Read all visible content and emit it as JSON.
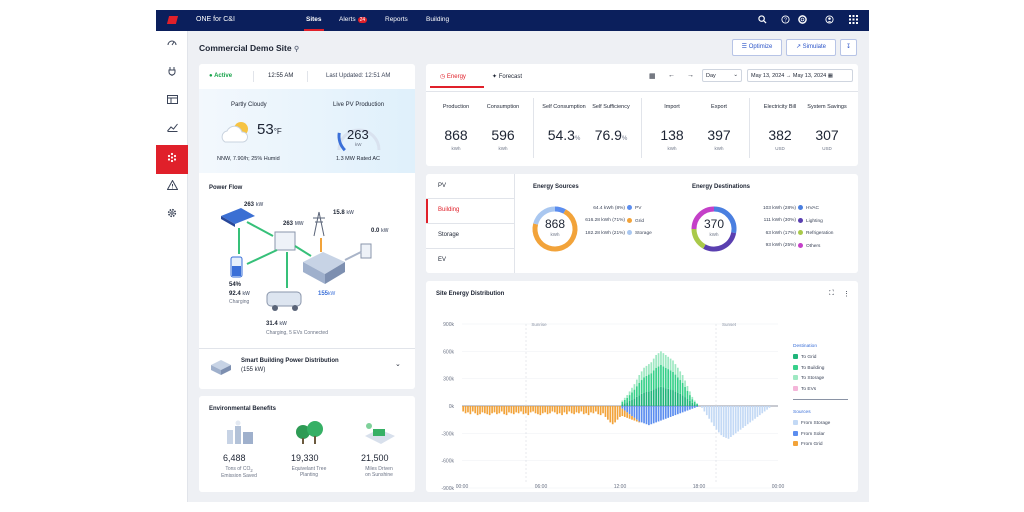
{
  "nav": {
    "app_title": "ONE for C&I",
    "items": [
      "Sites",
      "Alerts",
      "Reports",
      "Building"
    ],
    "alerts_count": "24"
  },
  "page": {
    "title": "Commercial Demo Site",
    "optimize": "Optimize",
    "simulate": "Simulate"
  },
  "status": {
    "state": "Active",
    "time": "12:55 AM",
    "updated_label": "Last Updated:",
    "updated_time": "12:51 AM"
  },
  "weather": {
    "label": "Partly Cloudy",
    "temp": "53",
    "unit": "°F",
    "detail": "NNW, 7.90/h; 25% Humid",
    "pv_label": "Live PV Production",
    "pv_value": "263",
    "pv_unit": "kW",
    "pv_rated": "1.3 MW Rated AC",
    "pv_fraction": 0.2
  },
  "flow": {
    "title": "Power Flow",
    "pv": "263",
    "pv_unit": "kW",
    "grid_in": "263",
    "grid_in_unit": "MW",
    "grid": "15.8",
    "grid_unit": "kW",
    "ev_charger": "0.0",
    "ev_charger_unit": "kW",
    "battery_pct": "54%",
    "battery_kw": "92.4",
    "battery_unit": "kW",
    "battery_state": "Charging",
    "building": "155",
    "building_unit": "kW",
    "ev": "31.4",
    "ev_unit": "kW",
    "ev_detail": "Charging, 5 EVs Connected"
  },
  "smart": {
    "title": "Smart Building Power Distribution",
    "sub": "(155 kW)"
  },
  "env": {
    "title": "Environmental Benefits",
    "items": [
      {
        "value": "6,488",
        "l1": "Tons of CO",
        "l1b": "2",
        "l2": "Emission Saved"
      },
      {
        "value": "19,330",
        "l1": "Equivelant Tree",
        "l2": "Planting"
      },
      {
        "value": "21,500",
        "l1": "Miles Driven",
        "l2": "on Sunshine"
      }
    ]
  },
  "energy_tabs": {
    "energy": "Energy",
    "forecast": "Forecast",
    "period": "Day",
    "date_from": "May 13, 2024",
    "date_to": "May 13, 2024"
  },
  "kpis": [
    {
      "label": "Production",
      "value": "868",
      "unit": "kWh"
    },
    {
      "label": "Consumption",
      "value": "596",
      "unit": "kWh"
    },
    {
      "label": "Self Consumption",
      "value": "54.3",
      "unit": "%"
    },
    {
      "label": "Self Sufficiency",
      "value": "76.9",
      "unit": "%"
    },
    {
      "label": "Import",
      "value": "138",
      "unit": "kWh"
    },
    {
      "label": "Export",
      "value": "397",
      "unit": "kWh"
    },
    {
      "label": "Electricity Bill",
      "value": "382",
      "unit": "USD"
    },
    {
      "label": "System Savings",
      "value": "307",
      "unit": "USD"
    }
  ],
  "side_tabs": [
    "PV",
    "Building",
    "Storage",
    "EV"
  ],
  "sources": {
    "title": "Energy Sources",
    "total": "868",
    "unit": "kWh",
    "items": [
      {
        "text": "64.4 kWh (8%)",
        "name": "PV",
        "color": "#5b8def",
        "frac": 0.08
      },
      {
        "text": "616.28 kWh (71%)",
        "name": "Grid",
        "color": "#f2a33a",
        "frac": 0.71
      },
      {
        "text": "182.28 kWh (21%)",
        "name": "Storage",
        "color": "#a9c7f0",
        "frac": 0.21
      }
    ]
  },
  "dest": {
    "title": "Energy Destinations",
    "total": "370",
    "unit": "kWh",
    "items": [
      {
        "text": "103 kWh (28%)",
        "name": "HVAC",
        "color": "#4a7fe0",
        "frac": 0.28
      },
      {
        "text": "111 kWh (30%)",
        "name": "Lighting",
        "color": "#5a3fb0",
        "frac": 0.3
      },
      {
        "text": "63 kWh (17%)",
        "name": "Refrigeration",
        "color": "#a9c94a",
        "frac": 0.17
      },
      {
        "text": "93 kWh (25%)",
        "name": "Others",
        "color": "#c440c8",
        "frac": 0.25
      }
    ]
  },
  "chart_data": {
    "type": "bar",
    "title": "Site Energy Distribution",
    "yticks": [
      "900k",
      "600k",
      "300k",
      "0k",
      "-300k",
      "-600k",
      "-900k"
    ],
    "xticks": [
      "00:00",
      "06:00",
      "12:00",
      "18:00",
      "00:00"
    ],
    "ylim": [
      -900000,
      900000
    ],
    "annotations": [
      "Sunrise",
      "Sunset"
    ],
    "legend": {
      "dest_title": "Destination",
      "dest": [
        {
          "name": "To Grid",
          "color": "#1fb47a"
        },
        {
          "name": "To Building",
          "color": "#37d08a"
        },
        {
          "name": "To Storage",
          "color": "#9ee8c2"
        },
        {
          "name": "To EVs",
          "color": "#f4b5d9"
        }
      ],
      "src_title": "Sources",
      "src": [
        {
          "name": "From Storage",
          "color": "#c3d9f5"
        },
        {
          "name": "From Solar",
          "color": "#5b8def"
        },
        {
          "name": "From Grid",
          "color": "#f2a33a"
        }
      ]
    },
    "pos": [
      0,
      0,
      0,
      0,
      0,
      0,
      0,
      0,
      0,
      0,
      0,
      0,
      0,
      0,
      0,
      0,
      0,
      0,
      0,
      0,
      0,
      0,
      0,
      0,
      0,
      0,
      0,
      0,
      0,
      0,
      0,
      0,
      0,
      0,
      0,
      0,
      0,
      0,
      0,
      0,
      0,
      0,
      0,
      0,
      0,
      0,
      0,
      0,
      0,
      0,
      0,
      0,
      0,
      0,
      0,
      0,
      0,
      0,
      0,
      0,
      0,
      0,
      0,
      0,
      0,
      0,
      60000,
      90000,
      120000,
      160000,
      200000,
      240000,
      290000,
      340000,
      380000,
      420000,
      440000,
      460000,
      480000,
      520000,
      560000,
      580000,
      600000,
      580000,
      560000,
      540000,
      520000,
      500000,
      460000,
      420000,
      380000,
      340000,
      280000,
      220000,
      160000,
      100000,
      60000,
      30000,
      0,
      0,
      0,
      0,
      0,
      0,
      0,
      0,
      0,
      0,
      0,
      0,
      0,
      0,
      0,
      0,
      0,
      0,
      0,
      0,
      0,
      0,
      0,
      0,
      0,
      0,
      0,
      0,
      0,
      0,
      0,
      0,
      0
    ],
    "neg_grid": [
      -60000,
      -80000,
      -70000,
      -90000,
      -60000,
      -80000,
      -100000,
      -90000,
      -70000,
      -80000,
      -90000,
      -100000,
      -80000,
      -70000,
      -90000,
      -80000,
      -60000,
      -90000,
      -100000,
      -70000,
      -80000,
      -90000,
      -70000,
      -80000,
      -60000,
      -90000,
      -80000,
      -100000,
      -70000,
      -60000,
      -80000,
      -90000,
      -100000,
      -80000,
      -70000,
      -90000,
      -80000,
      -60000,
      -70000,
      -90000,
      -80000,
      -100000,
      -70000,
      -90000,
      -60000,
      -80000,
      -90000,
      -70000,
      -80000,
      -60000,
      -90000,
      -80000,
      -100000,
      -70000,
      -80000,
      -60000,
      -90000,
      -100000,
      -80000,
      -120000,
      -150000,
      -180000,
      -200000,
      -180000,
      -150000,
      -120000,
      -80000,
      -70000,
      -60000,
      -50000,
      -40000,
      -30000,
      -20000,
      -10000,
      0,
      0,
      0,
      0,
      0,
      0,
      0,
      0,
      0,
      0,
      0,
      0,
      0,
      0,
      0,
      0,
      0,
      0,
      0,
      0,
      0,
      0,
      0,
      0,
      0,
      0,
      0,
      0,
      0,
      0,
      0,
      0,
      0,
      0,
      0,
      0,
      0,
      0,
      0,
      0,
      0,
      0,
      0,
      0,
      0,
      0,
      0,
      0,
      0,
      0,
      0,
      0,
      0,
      0,
      0,
      0,
      0,
      0,
      0,
      0,
      0,
      -20000,
      -30000,
      -40000,
      -50000
    ],
    "neg_solar": [
      0,
      0,
      0,
      0,
      0,
      0,
      0,
      0,
      0,
      0,
      0,
      0,
      0,
      0,
      0,
      0,
      0,
      0,
      0,
      0,
      0,
      0,
      0,
      0,
      0,
      0,
      0,
      0,
      0,
      0,
      0,
      0,
      0,
      0,
      0,
      0,
      0,
      0,
      0,
      0,
      0,
      0,
      0,
      0,
      0,
      0,
      0,
      0,
      0,
      0,
      0,
      0,
      0,
      0,
      0,
      0,
      0,
      0,
      0,
      0,
      0,
      0,
      0,
      0,
      0,
      0,
      -30000,
      -50000,
      -70000,
      -90000,
      -110000,
      -130000,
      -150000,
      -170000,
      -180000,
      -190000,
      -200000,
      -210000,
      -200000,
      -190000,
      -180000,
      -170000,
      -160000,
      -150000,
      -140000,
      -130000,
      -120000,
      -110000,
      -100000,
      -90000,
      -80000,
      -70000,
      -60000,
      -50000,
      -40000,
      -30000,
      -20000,
      -10000,
      0,
      0,
      0,
      0,
      0,
      0,
      0,
      0,
      0,
      0,
      0,
      0,
      0,
      0,
      0,
      0,
      0,
      0,
      0,
      0,
      0,
      0,
      0,
      0,
      0,
      0,
      0,
      0,
      0,
      0,
      0,
      0
    ],
    "neg_storage": [
      0,
      0,
      0,
      0,
      0,
      0,
      0,
      0,
      0,
      0,
      0,
      0,
      0,
      0,
      0,
      0,
      0,
      0,
      0,
      0,
      0,
      0,
      0,
      0,
      0,
      0,
      0,
      0,
      0,
      0,
      0,
      0,
      0,
      0,
      0,
      0,
      0,
      0,
      0,
      0,
      0,
      0,
      0,
      0,
      0,
      0,
      0,
      0,
      0,
      0,
      0,
      0,
      0,
      0,
      0,
      0,
      0,
      0,
      0,
      0,
      0,
      0,
      0,
      0,
      0,
      0,
      0,
      0,
      0,
      0,
      0,
      0,
      0,
      0,
      0,
      0,
      0,
      0,
      0,
      0,
      0,
      0,
      0,
      0,
      0,
      0,
      0,
      0,
      0,
      0,
      0,
      0,
      0,
      0,
      0,
      0,
      0,
      0,
      0,
      -20000,
      -60000,
      -100000,
      -140000,
      -180000,
      -220000,
      -260000,
      -290000,
      -320000,
      -340000,
      -350000,
      -360000,
      -340000,
      -320000,
      -300000,
      -280000,
      -260000,
      -240000,
      -220000,
      -200000,
      -180000,
      -160000,
      -140000,
      -120000,
      -100000,
      -80000,
      -60000,
      -40000,
      -20000,
      0,
      0,
      0,
      0
    ]
  }
}
